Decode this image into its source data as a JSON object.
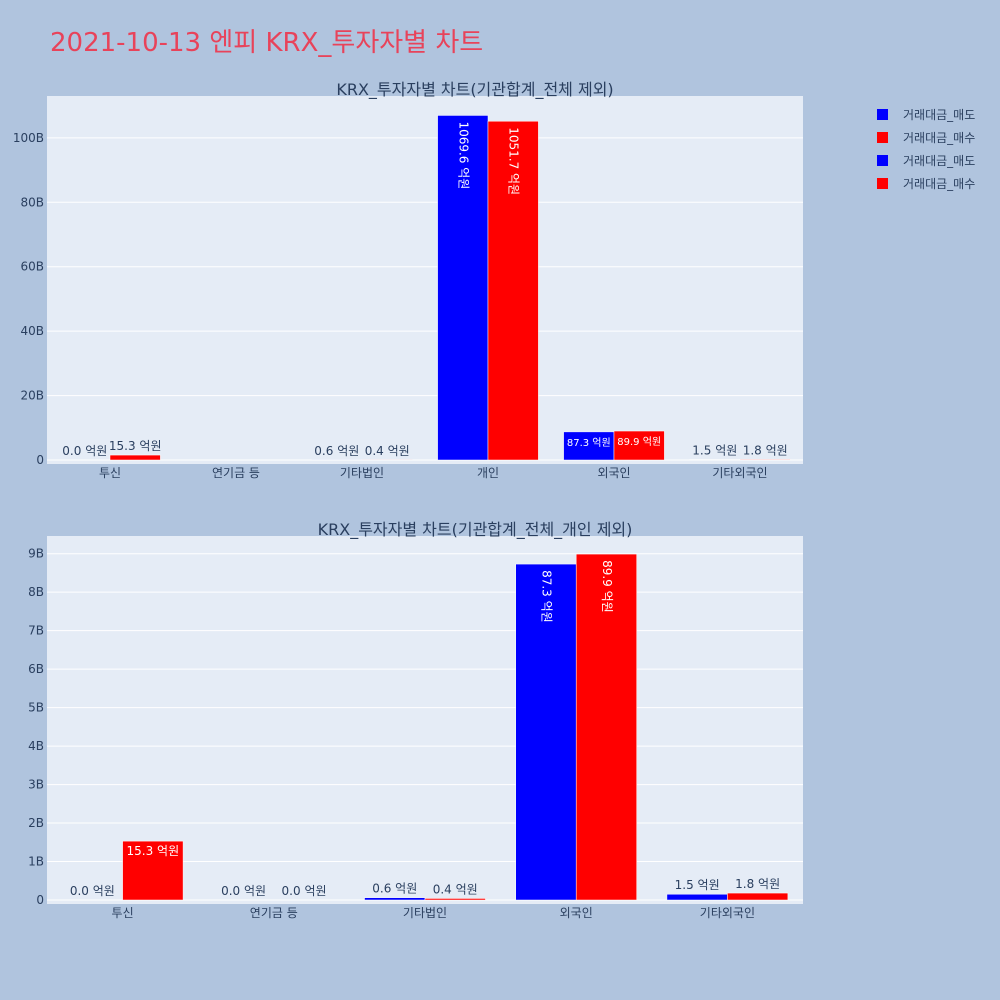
{
  "page_title": "2021-10-13 엔피 KRX_투자자별 차트",
  "colors": {
    "sell": "#0000ff",
    "buy": "#ff0000",
    "plot_bg": "#e5ecf6",
    "page_bg": "#b0c4de",
    "title": "#e8435a"
  },
  "legend": [
    {
      "label": "거래대금_매도",
      "color": "#0000ff"
    },
    {
      "label": "거래대금_매수",
      "color": "#ff0000"
    },
    {
      "label": "거래대금_매도",
      "color": "#0000ff"
    },
    {
      "label": "거래대금_매수",
      "color": "#ff0000"
    }
  ],
  "chart_data": [
    {
      "type": "bar",
      "title": "KRX_투자자별 차트(기관합계_전체 제외)",
      "categories": [
        "투신",
        "연기금 등",
        "기타법인",
        "개인",
        "외국인",
        "기타외국인"
      ],
      "series": [
        {
          "name": "거래대금_매도",
          "color": "#0000ff",
          "values": [
            0,
            null,
            60000000,
            106960000000,
            8730000000,
            150000000
          ],
          "labels": [
            "0.0 억원",
            "",
            "0.6 억원",
            "1069.6 억원",
            "87.3 억원",
            "1.5 억원"
          ]
        },
        {
          "name": "거래대금_매수",
          "color": "#ff0000",
          "values": [
            1530000000,
            null,
            40000000,
            105170000000,
            8990000000,
            180000000
          ],
          "labels": [
            "15.3 억원",
            "",
            "0.4 억원",
            "1051.7 억원",
            "89.9 억원",
            "1.8 억원"
          ]
        }
      ],
      "ylim": [
        0,
        113000000000
      ],
      "y_ticks": [
        0,
        20000000000,
        40000000000,
        60000000000,
        80000000000,
        100000000000
      ],
      "y_tick_labels": [
        "0",
        "20B",
        "40B",
        "60B",
        "80B",
        "100B"
      ],
      "grid": true
    },
    {
      "type": "bar",
      "title": "KRX_투자자별 차트(기관합계_전체_개인 제외)",
      "categories": [
        "투신",
        "연기금 등",
        "기타법인",
        "외국인",
        "기타외국인"
      ],
      "series": [
        {
          "name": "거래대금_매도",
          "color": "#0000ff",
          "values": [
            0,
            0,
            60000000,
            8730000000,
            150000000
          ],
          "labels": [
            "0.0 억원",
            "0.0 억원",
            "0.6 억원",
            "87.3 억원",
            "1.5 억원"
          ]
        },
        {
          "name": "거래대금_매수",
          "color": "#ff0000",
          "values": [
            1530000000,
            0,
            40000000,
            8990000000,
            180000000
          ],
          "labels": [
            "15.3 억원",
            "0.0 억원",
            "0.4 억원",
            "89.9 억원",
            "1.8 억원"
          ]
        }
      ],
      "ylim": [
        0,
        9460000000
      ],
      "y_ticks": [
        0,
        1000000000,
        2000000000,
        3000000000,
        4000000000,
        5000000000,
        6000000000,
        7000000000,
        8000000000,
        9000000000
      ],
      "y_tick_labels": [
        "0",
        "1B",
        "2B",
        "3B",
        "4B",
        "5B",
        "6B",
        "7B",
        "8B",
        "9B"
      ],
      "grid": true
    }
  ]
}
